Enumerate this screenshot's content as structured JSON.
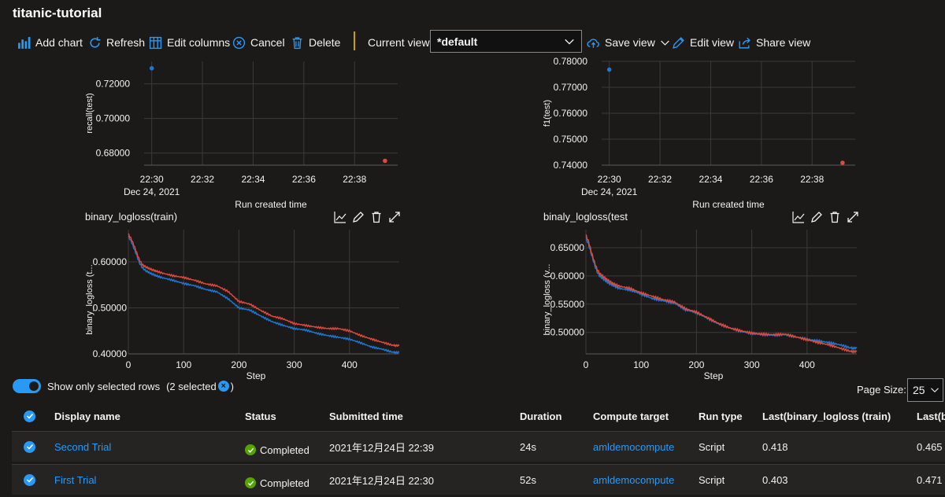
{
  "title": "titanic-tutorial",
  "toolbar": {
    "add_chart": "Add chart",
    "refresh": "Refresh",
    "edit_columns": "Edit columns",
    "cancel": "Cancel",
    "delete": "Delete",
    "current_view_label": "Current view:",
    "current_view_value": "*default",
    "save_view": "Save view",
    "edit_view": "Edit view",
    "share_view": "Share view"
  },
  "colors": {
    "accent": "#2899f5",
    "series_blue": "#1f77d4",
    "series_red": "#e0493b",
    "success": "#57a300"
  },
  "chart_data": [
    {
      "type": "scatter",
      "title": "",
      "xlabel": "Run created time",
      "ylabel": "recall(test)",
      "x_ticks": [
        "22:30",
        "22:32",
        "22:34",
        "22:36",
        "22:38"
      ],
      "x_sub": "Dec 24, 2021",
      "y_ticks": [
        "0.72000",
        "0.70000",
        "0.68000"
      ],
      "ylim": [
        0.673,
        0.733
      ],
      "series": [
        {
          "name": "First Trial",
          "color": "#1f77d4",
          "x": [
            0.0
          ],
          "y": [
            0.729
          ]
        },
        {
          "name": "Second Trial",
          "color": "#e0493b",
          "x": [
            9.2
          ],
          "y": [
            0.6755
          ]
        }
      ]
    },
    {
      "type": "scatter",
      "title": "",
      "xlabel": "Run created time",
      "ylabel": "f1(test)",
      "x_ticks": [
        "22:30",
        "22:32",
        "22:34",
        "22:36",
        "22:38"
      ],
      "x_sub": "Dec 24, 2021",
      "y_ticks": [
        "0.78000",
        "0.77000",
        "0.76000",
        "0.75000",
        "0.74000"
      ],
      "ylim": [
        0.74,
        0.78
      ],
      "series": [
        {
          "name": "First Trial",
          "color": "#1f77d4",
          "x": [
            0.0
          ],
          "y": [
            0.7768
          ]
        },
        {
          "name": "Second Trial",
          "color": "#e0493b",
          "x": [
            9.2
          ],
          "y": [
            0.7409
          ]
        }
      ]
    },
    {
      "type": "line",
      "title": "binary_logloss(train)",
      "xlabel": "Step",
      "ylabel": "binary_logloss (t...",
      "x_ticks": [
        "0",
        "100",
        "200",
        "300",
        "400"
      ],
      "y_ticks": [
        "0.60000",
        "0.50000",
        "0.40000"
      ],
      "ylim": [
        0.4,
        0.67
      ],
      "xlim": [
        0,
        490
      ],
      "series": [
        {
          "name": "First Trial",
          "color": "#1f77d4",
          "x": [
            0,
            5,
            10,
            15,
            20,
            25,
            30,
            40,
            50,
            60,
            80,
            100,
            120,
            140,
            160,
            180,
            200,
            220,
            240,
            260,
            280,
            300,
            320,
            340,
            360,
            380,
            400,
            420,
            440,
            460,
            480,
            490
          ],
          "y": [
            0.655,
            0.645,
            0.63,
            0.615,
            0.598,
            0.588,
            0.582,
            0.575,
            0.57,
            0.566,
            0.56,
            0.553,
            0.548,
            0.54,
            0.535,
            0.52,
            0.5,
            0.495,
            0.482,
            0.47,
            0.462,
            0.455,
            0.452,
            0.445,
            0.44,
            0.436,
            0.432,
            0.424,
            0.415,
            0.41,
            0.403,
            0.403
          ]
        },
        {
          "name": "Second Trial",
          "color": "#e0493b",
          "x": [
            0,
            5,
            10,
            15,
            20,
            25,
            30,
            40,
            50,
            60,
            80,
            100,
            120,
            140,
            160,
            180,
            200,
            220,
            240,
            260,
            280,
            300,
            320,
            340,
            360,
            380,
            400,
            420,
            440,
            460,
            480,
            490
          ],
          "y": [
            0.66,
            0.65,
            0.636,
            0.62,
            0.604,
            0.594,
            0.59,
            0.584,
            0.58,
            0.576,
            0.57,
            0.566,
            0.56,
            0.552,
            0.548,
            0.536,
            0.514,
            0.508,
            0.494,
            0.482,
            0.476,
            0.466,
            0.462,
            0.458,
            0.455,
            0.455,
            0.45,
            0.44,
            0.432,
            0.425,
            0.418,
            0.418
          ]
        }
      ]
    },
    {
      "type": "line",
      "title": "binaly_logloss(test",
      "xlabel": "Step",
      "ylabel": "binary_logloss (v...",
      "x_ticks": [
        "0",
        "100",
        "200",
        "300",
        "400"
      ],
      "y_ticks": [
        "0.65000",
        "0.60000",
        "0.55000",
        "0.50000"
      ],
      "ylim": [
        0.462,
        0.682
      ],
      "xlim": [
        0,
        490
      ],
      "series": [
        {
          "name": "First Trial",
          "color": "#1f77d4",
          "x": [
            0,
            5,
            10,
            15,
            20,
            25,
            30,
            40,
            50,
            60,
            80,
            100,
            120,
            140,
            160,
            180,
            200,
            220,
            240,
            260,
            280,
            300,
            320,
            340,
            360,
            380,
            400,
            420,
            440,
            460,
            480,
            490
          ],
          "y": [
            0.668,
            0.655,
            0.638,
            0.622,
            0.608,
            0.6,
            0.596,
            0.588,
            0.583,
            0.578,
            0.575,
            0.568,
            0.56,
            0.556,
            0.552,
            0.54,
            0.535,
            0.525,
            0.515,
            0.508,
            0.502,
            0.498,
            0.496,
            0.495,
            0.496,
            0.492,
            0.488,
            0.485,
            0.482,
            0.478,
            0.472,
            0.472
          ]
        },
        {
          "name": "Second Trial",
          "color": "#e0493b",
          "x": [
            0,
            5,
            10,
            15,
            20,
            25,
            30,
            40,
            50,
            60,
            80,
            100,
            120,
            140,
            160,
            180,
            200,
            220,
            240,
            260,
            280,
            300,
            320,
            340,
            360,
            380,
            400,
            420,
            440,
            460,
            480,
            490
          ],
          "y": [
            0.672,
            0.66,
            0.642,
            0.626,
            0.612,
            0.604,
            0.6,
            0.592,
            0.586,
            0.582,
            0.578,
            0.57,
            0.564,
            0.558,
            0.554,
            0.542,
            0.536,
            0.526,
            0.516,
            0.508,
            0.503,
            0.499,
            0.497,
            0.496,
            0.497,
            0.492,
            0.487,
            0.482,
            0.478,
            0.472,
            0.466,
            0.466
          ]
        }
      ]
    }
  ],
  "filter": {
    "toggle_label": "Show only selected rows",
    "selected_count": "(2 selected",
    "selected_close": ")"
  },
  "page_size": {
    "label": "Page Size:",
    "value": "25"
  },
  "table": {
    "columns": [
      "Display name",
      "Status",
      "Submitted time",
      "Duration",
      "Compute target",
      "Run type",
      "Last(binary_logloss (train)",
      "Last(bi"
    ],
    "rows": [
      {
        "name": "Second Trial",
        "status": "Completed",
        "submitted": "2021年12月24日 22:39",
        "duration": "24s",
        "compute": "amldemocompute",
        "run_type": "Script",
        "last_train": "0.418",
        "last_test": "0.465"
      },
      {
        "name": "First Trial",
        "status": "Completed",
        "submitted": "2021年12月24日 22:30",
        "duration": "52s",
        "compute": "amldemocompute",
        "run_type": "Script",
        "last_train": "0.403",
        "last_test": "0.471"
      }
    ]
  }
}
